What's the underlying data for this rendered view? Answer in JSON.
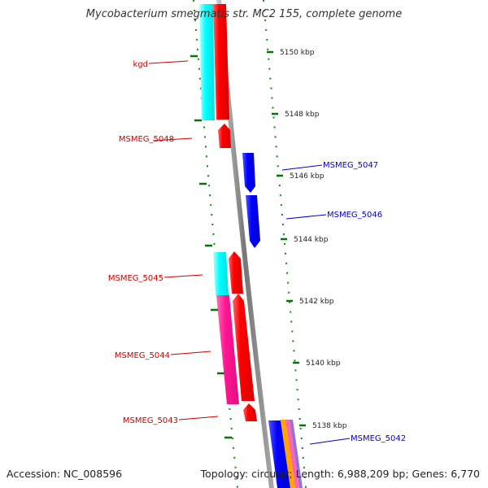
{
  "title": "Mycobacterium smegmatis str. MC2 155, complete genome",
  "footer": {
    "accession": "Accession: NC_008596",
    "summary": "Topology: circular; Length: 6,988,209 bp; Genes: 6,770"
  },
  "colors": {
    "forward_gene": "#ff0000",
    "forward_cds_a": "#00ffff",
    "forward_cds_b": "#ff1493",
    "reverse_gene": "#0000ff",
    "forward_label": "#cc0000",
    "reverse_label": "#0000cc",
    "tick": "#007700",
    "backbone": "#888888",
    "gc_skew": "#ffa500",
    "gc_content": "#9370db"
  },
  "ticks": [
    {
      "kbp": 5150,
      "label": "5150 kbp"
    },
    {
      "kbp": 5148,
      "label": "5148 kbp"
    },
    {
      "kbp": 5146,
      "label": "5146 kbp"
    },
    {
      "kbp": 5144,
      "label": "5144 kbp"
    },
    {
      "kbp": 5142,
      "label": "5142 kbp"
    },
    {
      "kbp": 5140,
      "label": "5140 kbp"
    },
    {
      "kbp": 5138,
      "label": "5138 kbp"
    }
  ],
  "genes": [
    {
      "name": "kgd",
      "strand": "forward"
    },
    {
      "name": "MSMEG_5048",
      "strand": "forward"
    },
    {
      "name": "MSMEG_5047",
      "strand": "reverse"
    },
    {
      "name": "MSMEG_5046",
      "strand": "reverse"
    },
    {
      "name": "MSMEG_5045",
      "strand": "forward"
    },
    {
      "name": "MSMEG_5044",
      "strand": "forward"
    },
    {
      "name": "MSMEG_5043",
      "strand": "forward"
    },
    {
      "name": "MSMEG_5042",
      "strand": "reverse"
    }
  ]
}
